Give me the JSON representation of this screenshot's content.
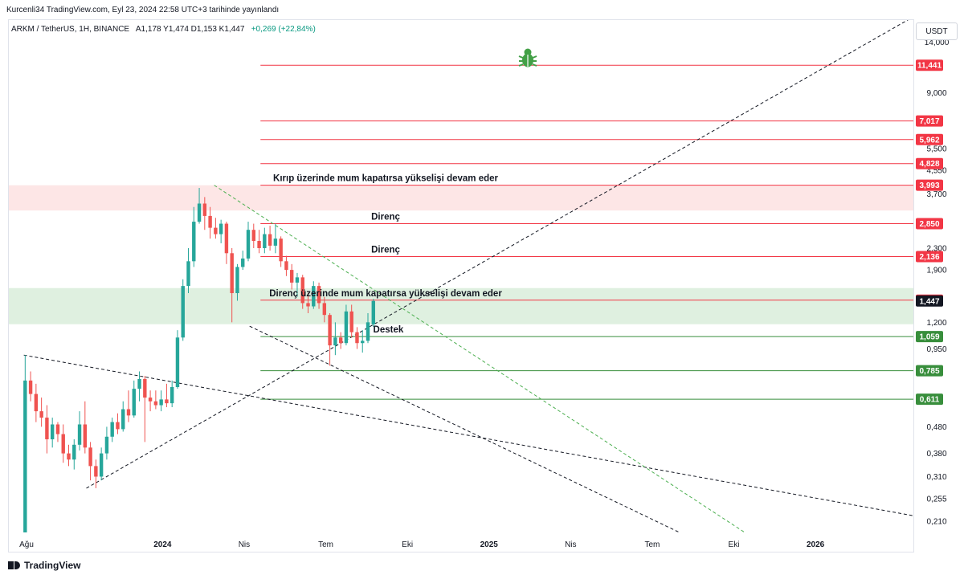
{
  "header": {
    "published": "Kurcenli34 TradingView.com, Eyl 23, 2024 22:58 UTC+3 tarihinde yayınlandı"
  },
  "symbol": {
    "pair": "ARKM / TetherUS, 1H, BINANCE",
    "ohlc": "A1,178  Y1,474  D1,153  K1,447",
    "change": "+0,269 (+22,84%)"
  },
  "axis_unit": "USDT",
  "footer": {
    "logo_text": "TradingView"
  },
  "colors": {
    "up": "#26a69a",
    "down": "#ef5350",
    "resistance": "#f23645",
    "support": "#388e3c",
    "last_price": "#131722",
    "red_zone": "#fde6e6",
    "green_zone": "#dff0e0"
  },
  "icon": "bug-icon",
  "chart_data": {
    "type": "candlestick",
    "y_scale": "log",
    "ylim": [
      0.19,
      17
    ],
    "y_ticks": [
      {
        "value": 14.0,
        "label": "14,000"
      },
      {
        "value": 9.0,
        "label": "9,000"
      },
      {
        "value": 5.5,
        "label": "5,500"
      },
      {
        "value": 4.55,
        "label": "4,550"
      },
      {
        "value": 3.7,
        "label": "3,700"
      },
      {
        "value": 2.3,
        "label": "2,300"
      },
      {
        "value": 1.9,
        "label": "1,900"
      },
      {
        "value": 1.2,
        "label": "1,200"
      },
      {
        "value": 0.95,
        "label": "0,950"
      },
      {
        "value": 0.48,
        "label": "0,480"
      },
      {
        "value": 0.38,
        "label": "0,380"
      },
      {
        "value": 0.31,
        "label": "0,310"
      },
      {
        "value": 0.255,
        "label": "0,255"
      },
      {
        "value": 0.21,
        "label": "0,210"
      }
    ],
    "x_ticks": [
      {
        "label": "Ağu",
        "t": 0.0,
        "bold": false
      },
      {
        "label": "2024",
        "t": 5.0,
        "bold": true
      },
      {
        "label": "Nis",
        "t": 8.0,
        "bold": false
      },
      {
        "label": "Tem",
        "t": 11.0,
        "bold": false
      },
      {
        "label": "Eki",
        "t": 14.0,
        "bold": false
      },
      {
        "label": "2025",
        "t": 17.0,
        "bold": true
      },
      {
        "label": "Nis",
        "t": 20.0,
        "bold": false
      },
      {
        "label": "Tem",
        "t": 23.0,
        "bold": false
      },
      {
        "label": "Eki",
        "t": 26.0,
        "bold": false
      },
      {
        "label": "2026",
        "t": 29.0,
        "bold": true
      }
    ],
    "xlim": [
      -0.65,
      32.6
    ],
    "levels": [
      {
        "value": 11.441,
        "label": "11,441",
        "kind": "resistance",
        "t0": 8.6
      },
      {
        "value": 7.017,
        "label": "7,017",
        "kind": "resistance",
        "t0": 8.6
      },
      {
        "value": 5.962,
        "label": "5,962",
        "kind": "resistance",
        "t0": 8.6
      },
      {
        "value": 4.828,
        "label": "4,828",
        "kind": "resistance",
        "t0": 8.6
      },
      {
        "value": 3.993,
        "label": "3,993",
        "kind": "resistance",
        "t0": 8.6
      },
      {
        "value": 2.85,
        "label": "2,850",
        "kind": "resistance",
        "t0": 8.6
      },
      {
        "value": 2.136,
        "label": "2,136",
        "kind": "resistance",
        "t0": 8.6
      },
      {
        "value": 1.457,
        "label": "1,457",
        "kind": "resistance",
        "t0": 8.6
      },
      {
        "value": 1.059,
        "label": "1,059",
        "kind": "support",
        "t0": 8.6
      },
      {
        "value": 0.785,
        "label": "0,785",
        "kind": "support",
        "t0": 8.6
      },
      {
        "value": 0.611,
        "label": "0,611",
        "kind": "support",
        "t0": 8.6
      }
    ],
    "last_price": {
      "value": 1.447,
      "label": "1,447"
    },
    "zones": [
      {
        "kind": "red",
        "top": 3.993,
        "bottom": 3.2,
        "t0": -7.5
      },
      {
        "kind": "green",
        "top": 1.62,
        "bottom": 1.18,
        "t0": -7.5
      }
    ],
    "annotations": [
      {
        "text": "Kırıp üzerinde mum kapatırsa yükselişi devam eder",
        "t": 13.2,
        "value": 3.993
      },
      {
        "text": "Direnç",
        "t": 13.2,
        "value": 2.85
      },
      {
        "text": "Direnç",
        "t": 13.2,
        "value": 2.136
      },
      {
        "text": "Direnç üzerinde mum kapatırsa yükselişi devam eder",
        "t": 13.2,
        "value": 1.457
      },
      {
        "text": "Destek",
        "t": 13.3,
        "value": 1.059
      }
    ],
    "trendlines": [
      {
        "t0": -0.1,
        "v0": 0.9,
        "t1": 32.6,
        "v1": 0.22,
        "style": "dashed",
        "color": "#131722"
      },
      {
        "t0": 2.2,
        "v0": 0.28,
        "t1": 32.6,
        "v1": 17.5,
        "style": "dashed",
        "color": "#131722"
      },
      {
        "t0": 8.2,
        "v0": 1.16,
        "t1": 24.0,
        "v1": 0.19,
        "style": "dashed",
        "color": "#131722"
      },
      {
        "t0": 6.9,
        "v0": 3.993,
        "t1": 26.4,
        "v1": 0.19,
        "style": "dashed",
        "color": "#4caf50"
      }
    ],
    "candles": [
      {
        "t": -0.05,
        "o": 0.19,
        "h": 0.9,
        "l": 0.19,
        "c": 0.72
      },
      {
        "t": 0.15,
        "o": 0.72,
        "h": 0.78,
        "l": 0.6,
        "c": 0.64
      },
      {
        "t": 0.35,
        "o": 0.64,
        "h": 0.7,
        "l": 0.5,
        "c": 0.55
      },
      {
        "t": 0.55,
        "o": 0.55,
        "h": 0.62,
        "l": 0.48,
        "c": 0.52
      },
      {
        "t": 0.75,
        "o": 0.52,
        "h": 0.58,
        "l": 0.38,
        "c": 0.43
      },
      {
        "t": 0.95,
        "o": 0.43,
        "h": 0.52,
        "l": 0.4,
        "c": 0.49
      },
      {
        "t": 1.15,
        "o": 0.49,
        "h": 0.5,
        "l": 0.42,
        "c": 0.45
      },
      {
        "t": 1.35,
        "o": 0.45,
        "h": 0.49,
        "l": 0.35,
        "c": 0.38
      },
      {
        "t": 1.55,
        "o": 0.38,
        "h": 0.41,
        "l": 0.34,
        "c": 0.36
      },
      {
        "t": 1.75,
        "o": 0.36,
        "h": 0.43,
        "l": 0.33,
        "c": 0.41
      },
      {
        "t": 1.95,
        "o": 0.41,
        "h": 0.55,
        "l": 0.39,
        "c": 0.49
      },
      {
        "t": 2.15,
        "o": 0.49,
        "h": 0.6,
        "l": 0.38,
        "c": 0.4
      },
      {
        "t": 2.35,
        "o": 0.4,
        "h": 0.42,
        "l": 0.3,
        "c": 0.34
      },
      {
        "t": 2.55,
        "o": 0.34,
        "h": 0.36,
        "l": 0.28,
        "c": 0.31
      },
      {
        "t": 2.75,
        "o": 0.31,
        "h": 0.4,
        "l": 0.3,
        "c": 0.38
      },
      {
        "t": 2.95,
        "o": 0.38,
        "h": 0.48,
        "l": 0.36,
        "c": 0.44
      },
      {
        "t": 3.15,
        "o": 0.44,
        "h": 0.52,
        "l": 0.42,
        "c": 0.5
      },
      {
        "t": 3.35,
        "o": 0.5,
        "h": 0.54,
        "l": 0.45,
        "c": 0.47
      },
      {
        "t": 3.55,
        "o": 0.47,
        "h": 0.6,
        "l": 0.46,
        "c": 0.56
      },
      {
        "t": 3.75,
        "o": 0.56,
        "h": 0.66,
        "l": 0.5,
        "c": 0.53
      },
      {
        "t": 3.95,
        "o": 0.53,
        "h": 0.72,
        "l": 0.52,
        "c": 0.67
      },
      {
        "t": 4.15,
        "o": 0.67,
        "h": 0.78,
        "l": 0.6,
        "c": 0.73
      },
      {
        "t": 4.35,
        "o": 0.73,
        "h": 0.75,
        "l": 0.42,
        "c": 0.62
      },
      {
        "t": 4.55,
        "o": 0.62,
        "h": 0.66,
        "l": 0.55,
        "c": 0.6
      },
      {
        "t": 4.75,
        "o": 0.6,
        "h": 0.66,
        "l": 0.56,
        "c": 0.58
      },
      {
        "t": 4.95,
        "o": 0.58,
        "h": 0.66,
        "l": 0.55,
        "c": 0.61
      },
      {
        "t": 5.15,
        "o": 0.61,
        "h": 0.7,
        "l": 0.57,
        "c": 0.59
      },
      {
        "t": 5.35,
        "o": 0.59,
        "h": 0.72,
        "l": 0.57,
        "c": 0.68
      },
      {
        "t": 5.55,
        "o": 0.68,
        "h": 1.12,
        "l": 0.67,
        "c": 1.05
      },
      {
        "t": 5.75,
        "o": 1.05,
        "h": 1.75,
        "l": 1.02,
        "c": 1.65
      },
      {
        "t": 5.95,
        "o": 1.65,
        "h": 2.3,
        "l": 1.55,
        "c": 2.05
      },
      {
        "t": 6.15,
        "o": 2.05,
        "h": 3.3,
        "l": 1.95,
        "c": 2.9
      },
      {
        "t": 6.35,
        "o": 2.9,
        "h": 3.9,
        "l": 2.85,
        "c": 3.4
      },
      {
        "t": 6.55,
        "o": 3.4,
        "h": 3.6,
        "l": 2.7,
        "c": 3.05
      },
      {
        "t": 6.75,
        "o": 3.05,
        "h": 3.3,
        "l": 2.5,
        "c": 2.75
      },
      {
        "t": 6.95,
        "o": 2.75,
        "h": 3.0,
        "l": 2.5,
        "c": 2.6
      },
      {
        "t": 7.15,
        "o": 2.6,
        "h": 2.95,
        "l": 2.4,
        "c": 2.85
      },
      {
        "t": 7.35,
        "o": 2.85,
        "h": 2.9,
        "l": 2.0,
        "c": 2.2
      },
      {
        "t": 7.55,
        "o": 2.2,
        "h": 2.3,
        "l": 1.2,
        "c": 1.55
      },
      {
        "t": 7.75,
        "o": 1.55,
        "h": 2.0,
        "l": 1.45,
        "c": 1.95
      },
      {
        "t": 7.95,
        "o": 1.95,
        "h": 2.25,
        "l": 1.9,
        "c": 2.1
      },
      {
        "t": 8.15,
        "o": 2.1,
        "h": 2.9,
        "l": 2.05,
        "c": 2.7
      },
      {
        "t": 8.35,
        "o": 2.7,
        "h": 2.85,
        "l": 2.3,
        "c": 2.45
      },
      {
        "t": 8.55,
        "o": 2.45,
        "h": 2.7,
        "l": 2.2,
        "c": 2.3
      },
      {
        "t": 8.75,
        "o": 2.3,
        "h": 2.75,
        "l": 2.2,
        "c": 2.6
      },
      {
        "t": 8.95,
        "o": 2.6,
        "h": 2.8,
        "l": 2.25,
        "c": 2.35
      },
      {
        "t": 9.15,
        "o": 2.35,
        "h": 2.85,
        "l": 2.2,
        "c": 2.5
      },
      {
        "t": 9.35,
        "o": 2.5,
        "h": 2.55,
        "l": 1.95,
        "c": 2.05
      },
      {
        "t": 9.55,
        "o": 2.05,
        "h": 2.15,
        "l": 1.8,
        "c": 1.9
      },
      {
        "t": 9.75,
        "o": 1.9,
        "h": 2.0,
        "l": 1.6,
        "c": 1.7
      },
      {
        "t": 9.95,
        "o": 1.7,
        "h": 1.85,
        "l": 1.5,
        "c": 1.78
      },
      {
        "t": 10.15,
        "o": 1.78,
        "h": 1.82,
        "l": 1.35,
        "c": 1.42
      },
      {
        "t": 10.35,
        "o": 1.42,
        "h": 1.55,
        "l": 1.3,
        "c": 1.38
      },
      {
        "t": 10.55,
        "o": 1.38,
        "h": 1.72,
        "l": 1.35,
        "c": 1.65
      },
      {
        "t": 10.75,
        "o": 1.65,
        "h": 1.7,
        "l": 1.35,
        "c": 1.42
      },
      {
        "t": 10.95,
        "o": 1.42,
        "h": 1.5,
        "l": 1.2,
        "c": 1.28
      },
      {
        "t": 11.15,
        "o": 1.28,
        "h": 1.3,
        "l": 0.82,
        "c": 0.98
      },
      {
        "t": 11.35,
        "o": 0.98,
        "h": 1.2,
        "l": 0.9,
        "c": 1.05
      },
      {
        "t": 11.55,
        "o": 1.05,
        "h": 1.1,
        "l": 0.95,
        "c": 1.0
      },
      {
        "t": 11.75,
        "o": 1.0,
        "h": 1.4,
        "l": 0.98,
        "c": 1.32
      },
      {
        "t": 11.95,
        "o": 1.32,
        "h": 1.4,
        "l": 1.05,
        "c": 1.1
      },
      {
        "t": 12.15,
        "o": 1.1,
        "h": 1.15,
        "l": 0.95,
        "c": 1.0
      },
      {
        "t": 12.35,
        "o": 1.0,
        "h": 1.12,
        "l": 0.92,
        "c": 1.02
      },
      {
        "t": 12.55,
        "o": 1.02,
        "h": 1.3,
        "l": 1.0,
        "c": 1.2
      },
      {
        "t": 12.75,
        "o": 1.178,
        "h": 1.474,
        "l": 1.153,
        "c": 1.447
      }
    ]
  }
}
